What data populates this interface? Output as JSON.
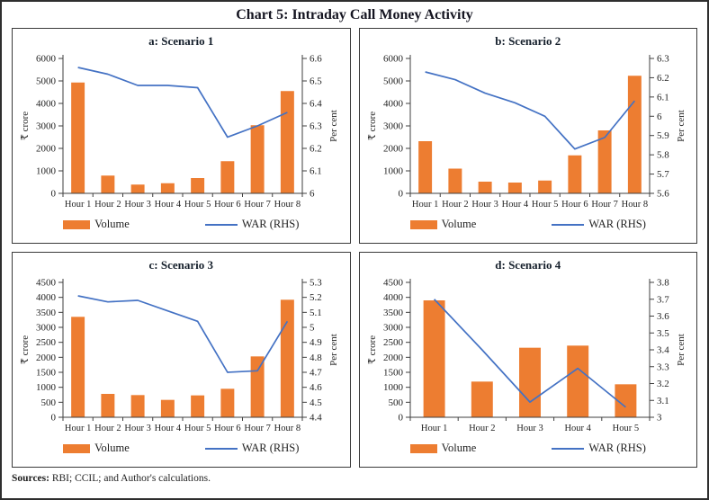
{
  "title": "Chart 5: Intraday Call Money Activity",
  "footer": {
    "label": "Sources:",
    "text": " RBI; CCIL; and Author's calculations."
  },
  "legend": {
    "volume": "Volume",
    "war": "WAR (RHS)"
  },
  "colors": {
    "bar": "#ED7D31",
    "line": "#4472C4",
    "axis": "#3f3f3f",
    "text": "#222222"
  },
  "chart_data": [
    {
      "id": "a",
      "type": "bar",
      "title": "a: Scenario 1",
      "categories": [
        "Hour 1",
        "Hour 2",
        "Hour 3",
        "Hour 4",
        "Hour 5",
        "Hour 6",
        "Hour 7",
        "Hour 8"
      ],
      "series": [
        {
          "name": "Volume",
          "type": "bar",
          "axis": "left",
          "values": [
            4930,
            790,
            390,
            450,
            680,
            1430,
            3030,
            4550
          ]
        },
        {
          "name": "WAR (RHS)",
          "type": "line",
          "axis": "right",
          "values": [
            6.56,
            6.53,
            6.48,
            6.48,
            6.47,
            6.25,
            6.3,
            6.36
          ]
        }
      ],
      "left_axis": {
        "label": "₹ crore",
        "min": 0,
        "max": 6000,
        "step": 1000
      },
      "right_axis": {
        "label": "Per cent",
        "min": 6,
        "max": 6.6,
        "step": 0.1
      },
      "grid": false,
      "legend_position": "bottom"
    },
    {
      "id": "b",
      "type": "bar",
      "title": "b: Scenario 2",
      "categories": [
        "Hour 1",
        "Hour 2",
        "Hour 3",
        "Hour 4",
        "Hour 5",
        "Hour 6",
        "Hour 7",
        "Hour 8"
      ],
      "series": [
        {
          "name": "Volume",
          "type": "bar",
          "axis": "left",
          "values": [
            2320,
            1100,
            520,
            480,
            570,
            1690,
            2800,
            5230
          ]
        },
        {
          "name": "WAR (RHS)",
          "type": "line",
          "axis": "right",
          "values": [
            6.23,
            6.19,
            6.12,
            6.07,
            6.0,
            5.83,
            5.89,
            6.08
          ]
        }
      ],
      "left_axis": {
        "label": "₹ crore",
        "min": 0,
        "max": 6000,
        "step": 1000
      },
      "right_axis": {
        "label": "Per cent",
        "min": 5.6,
        "max": 6.3,
        "step": 0.1
      },
      "grid": false,
      "legend_position": "bottom"
    },
    {
      "id": "c",
      "type": "bar",
      "title": "c: Scenario 3",
      "categories": [
        "Hour 1",
        "Hour 2",
        "Hour 3",
        "Hour 4",
        "Hour 5",
        "Hour 6",
        "Hour 7",
        "Hour 8"
      ],
      "series": [
        {
          "name": "Volume",
          "type": "bar",
          "axis": "left",
          "values": [
            3350,
            780,
            740,
            580,
            730,
            950,
            2030,
            3920
          ]
        },
        {
          "name": "WAR (RHS)",
          "type": "line",
          "axis": "right",
          "values": [
            5.21,
            5.17,
            5.18,
            5.11,
            5.04,
            4.7,
            4.71,
            5.04
          ]
        }
      ],
      "left_axis": {
        "label": "₹ crore",
        "min": 0,
        "max": 4500,
        "step": 500
      },
      "right_axis": {
        "label": "Per cent",
        "min": 4.4,
        "max": 5.3,
        "step": 0.1
      },
      "grid": false,
      "legend_position": "bottom"
    },
    {
      "id": "d",
      "type": "bar",
      "title": "d: Scenario 4",
      "categories": [
        "Hour 1",
        "Hour 2",
        "Hour 3",
        "Hour 4",
        "Hour 5"
      ],
      "series": [
        {
          "name": "Volume",
          "type": "bar",
          "axis": "left",
          "values": [
            3900,
            1190,
            2320,
            2390,
            1100
          ]
        },
        {
          "name": "WAR (RHS)",
          "type": "line",
          "axis": "right",
          "values": [
            3.7,
            3.4,
            3.09,
            3.29,
            3.06
          ]
        }
      ],
      "left_axis": {
        "label": "₹ crore",
        "min": 0,
        "max": 4500,
        "step": 500
      },
      "right_axis": {
        "label": "Per cent",
        "min": 3,
        "max": 3.8,
        "step": 0.1
      },
      "grid": false,
      "legend_position": "bottom"
    }
  ]
}
